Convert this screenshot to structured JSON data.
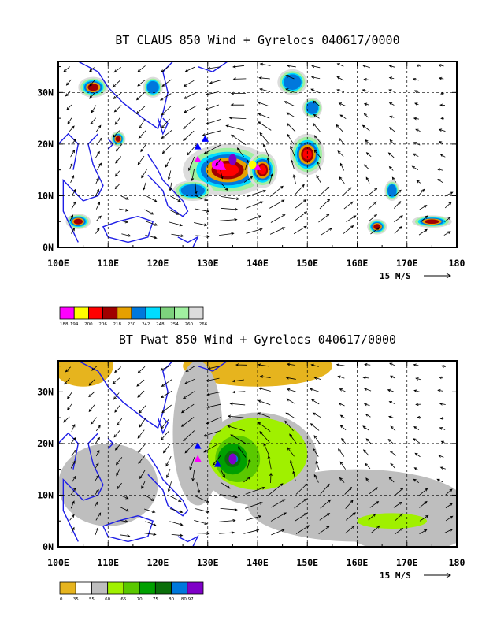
{
  "chart_data": [
    {
      "type": "heatmap",
      "title": "BT CLAUS 850 Wind + Gyrelocs 040617/0000",
      "x_ticks": [
        "100E",
        "110E",
        "120E",
        "130E",
        "140E",
        "150E",
        "160E",
        "170E",
        "180"
      ],
      "y_ticks": [
        "0N",
        "10N",
        "20N",
        "30N"
      ],
      "xlim": [
        100,
        180
      ],
      "ylim": [
        0,
        36
      ],
      "grid": true,
      "vector_scale_label": "15 M/S",
      "colorbar_colors": [
        "#ff00ff",
        "#ffff00",
        "#ff0000",
        "#a00000",
        "#e6a000",
        "#0078dc",
        "#00dcff",
        "#7dd27d",
        "#a0f0a0",
        "#dcdcdc"
      ],
      "colorbar_labels": [
        "188",
        "194",
        "200",
        "206",
        "218",
        "230",
        "242",
        "248",
        "254",
        "260",
        "266"
      ],
      "gyre_markers": [
        {
          "lon": 135,
          "lat": 17,
          "symbol": "ellipse",
          "color": "#7f00c8"
        },
        {
          "lon": 133,
          "lat": 15.5,
          "symbol": "triangle",
          "color": "#ff00ff"
        },
        {
          "lon": 128,
          "lat": 17,
          "symbol": "triangle",
          "color": "#ff00ff"
        },
        {
          "lon": 128,
          "lat": 19.5,
          "symbol": "triangle",
          "color": "#0000ff"
        },
        {
          "lon": 129.5,
          "lat": 21,
          "symbol": "triangle",
          "color": "#0000ff"
        },
        {
          "lon": 140,
          "lat": 15.5,
          "symbol": "triangle",
          "color": "#ff00ff"
        }
      ]
    },
    {
      "type": "heatmap",
      "title": "BT Pwat 850 Wind + Gyrelocs 040617/0000",
      "x_ticks": [
        "100E",
        "110E",
        "120E",
        "130E",
        "140E",
        "150E",
        "160E",
        "170E",
        "180"
      ],
      "y_ticks": [
        "0N",
        "10N",
        "20N",
        "30N"
      ],
      "xlim": [
        100,
        180
      ],
      "ylim": [
        0,
        36
      ],
      "grid": true,
      "vector_scale_label": "15 M/S",
      "colorbar_colors": [
        "#e6b41e",
        "#ffffff",
        "#bebebe",
        "#a0f000",
        "#5ac800",
        "#00a000",
        "#0a6e0a",
        "#0078dc",
        "#7f00c8"
      ],
      "colorbar_labels": [
        "0",
        "35",
        "55",
        "60",
        "65",
        "70",
        "75",
        "80",
        "80.97"
      ],
      "gyre_markers": [
        {
          "lon": 135,
          "lat": 17,
          "symbol": "ellipse",
          "color": "#7f00c8"
        },
        {
          "lon": 128,
          "lat": 17,
          "symbol": "triangle",
          "color": "#ff00ff"
        },
        {
          "lon": 128,
          "lat": 19.5,
          "symbol": "triangle",
          "color": "#0000ff"
        },
        {
          "lon": 132,
          "lat": 16,
          "symbol": "triangle",
          "color": "#0000ff"
        }
      ]
    }
  ]
}
